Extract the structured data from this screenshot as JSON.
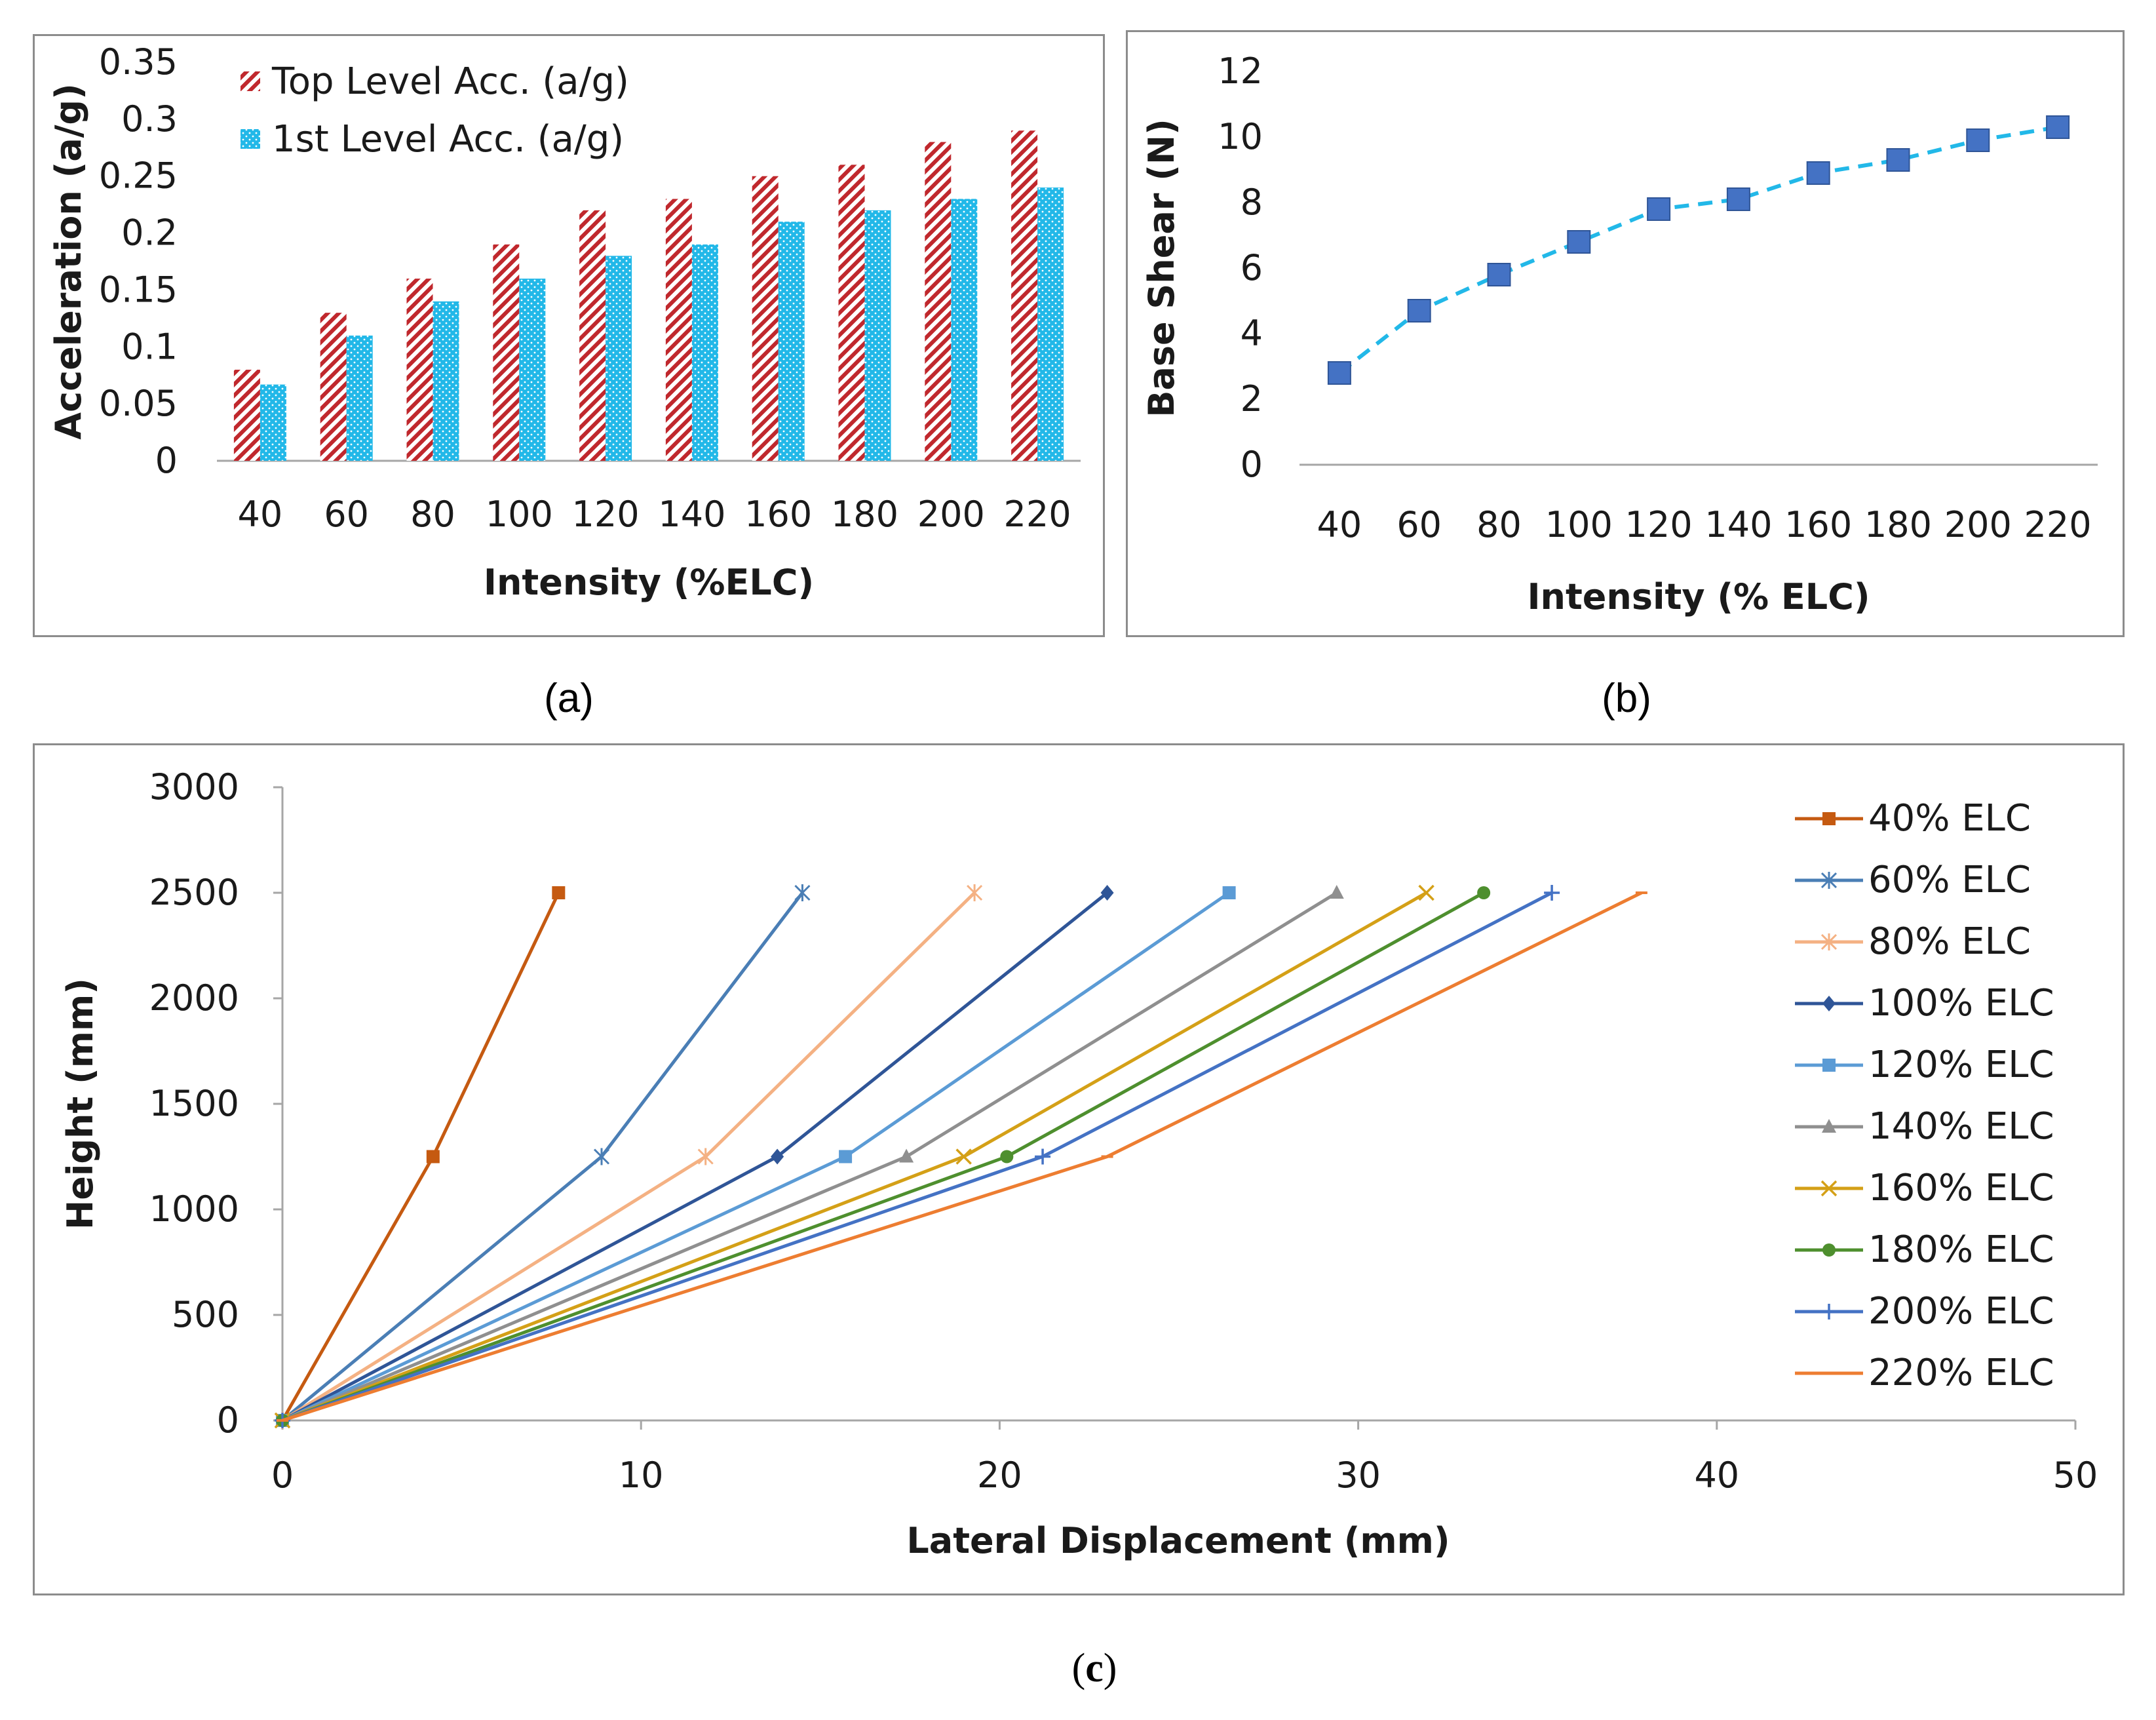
{
  "chart_data": [
    {
      "id": "a",
      "type": "bar",
      "title": "",
      "xlabel": "Intensity (%ELC)",
      "ylabel": "Acceleration (a/g)",
      "ylim": [
        0,
        0.35
      ],
      "yticks": [
        "0",
        "0.05",
        "0.1",
        "0.15",
        "0.2",
        "0.25",
        "0.3",
        "0.35"
      ],
      "categories": [
        "40",
        "60",
        "80",
        "100",
        "120",
        "140",
        "160",
        "180",
        "200",
        "220"
      ],
      "series": [
        {
          "name": "Top Level Acc. (a/g)",
          "color": "#c0282d",
          "pattern": "hatch",
          "values": [
            0.08,
            0.13,
            0.16,
            0.19,
            0.22,
            0.23,
            0.25,
            0.26,
            0.28,
            0.29
          ]
        },
        {
          "name": "1st Level Acc. (a/g)",
          "color": "#22b8e8",
          "pattern": "dots",
          "values": [
            0.067,
            0.11,
            0.14,
            0.16,
            0.18,
            0.19,
            0.21,
            0.22,
            0.23,
            0.24
          ]
        }
      ],
      "legend": "top-left",
      "grid": false
    },
    {
      "id": "b",
      "type": "line",
      "title": "",
      "xlabel": "Intensity (% ELC)",
      "ylabel": "Base Shear (N)",
      "ylim": [
        0,
        12
      ],
      "yticks": [
        "0",
        "2",
        "4",
        "6",
        "8",
        "10",
        "12"
      ],
      "categories": [
        "40",
        "60",
        "80",
        "100",
        "120",
        "140",
        "160",
        "180",
        "200",
        "220"
      ],
      "series": [
        {
          "name": "Base Shear",
          "color": "#22b8e8",
          "marker_color": "#4472c4",
          "dashed": true,
          "values": [
            2.8,
            4.7,
            5.8,
            6.8,
            7.8,
            8.1,
            8.9,
            9.3,
            9.9,
            10.3
          ]
        }
      ],
      "grid": false
    },
    {
      "id": "c",
      "type": "line",
      "title": "",
      "xlabel": "Lateral Displacement (mm)",
      "ylabel": "Height (mm)",
      "xlim": [
        0,
        50
      ],
      "ylim": [
        0,
        3000
      ],
      "xticks": [
        "0",
        "10",
        "20",
        "30",
        "40",
        "50"
      ],
      "yticks": [
        "0",
        "500",
        "1000",
        "1500",
        "2000",
        "2500",
        "3000"
      ],
      "y": [
        0,
        1250,
        2500
      ],
      "legend": "right",
      "grid": false,
      "series": [
        {
          "name": "40% ELC",
          "color": "#c55a11",
          "marker": "square",
          "x": [
            0,
            4.2,
            7.7
          ]
        },
        {
          "name": "60% ELC",
          "color": "#4a7eb5",
          "marker": "asterisk",
          "x": [
            0,
            8.9,
            14.5
          ]
        },
        {
          "name": "80% ELC",
          "color": "#f4b183",
          "marker": "asterisk",
          "x": [
            0,
            11.8,
            19.3
          ]
        },
        {
          "name": "100% ELC",
          "color": "#2f5597",
          "marker": "diamond",
          "x": [
            0,
            13.8,
            23.0
          ]
        },
        {
          "name": "120% ELC",
          "color": "#5b9bd5",
          "marker": "square",
          "x": [
            0,
            15.7,
            26.4
          ]
        },
        {
          "name": "140% ELC",
          "color": "#8f8f8f",
          "marker": "triangle",
          "x": [
            0,
            17.4,
            29.4
          ]
        },
        {
          "name": "160% ELC",
          "color": "#d4a017",
          "marker": "x",
          "x": [
            0,
            19.0,
            31.9
          ]
        },
        {
          "name": "180% ELC",
          "color": "#4e8f2e",
          "marker": "circle",
          "x": [
            0,
            20.2,
            33.5
          ]
        },
        {
          "name": "200% ELC",
          "color": "#4472c4",
          "marker": "plus",
          "x": [
            0,
            21.2,
            35.4
          ]
        },
        {
          "name": "220% ELC",
          "color": "#ed7d31",
          "marker": "dash",
          "x": [
            0,
            23.0,
            37.9
          ]
        }
      ]
    }
  ],
  "captions": {
    "a": "(a)",
    "b": "(b)",
    "c_open": "(",
    "c_letter": "c",
    "c_close": ")"
  }
}
